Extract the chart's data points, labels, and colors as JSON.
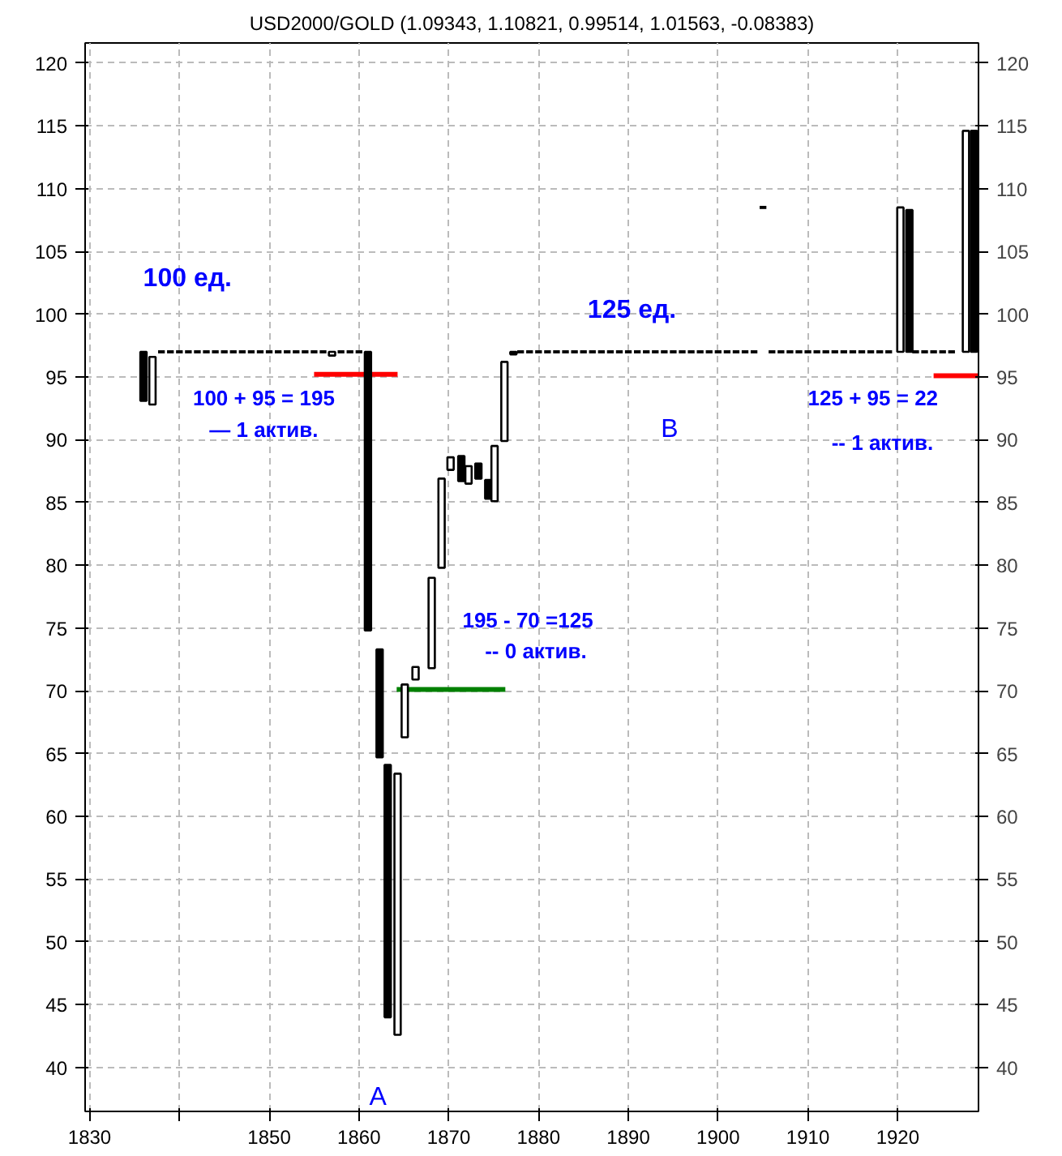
{
  "chart_data": {
    "type": "candlestick",
    "title": "USD2000/GOLD (1.09343, 1.10821, 0.99514, 1.01563, -0.08383)",
    "x": [
      1836,
      1837,
      1838,
      1839,
      1840,
      1841,
      1842,
      1843,
      1844,
      1845,
      1846,
      1847,
      1848,
      1849,
      1850,
      1851,
      1852,
      1853,
      1854,
      1855,
      1856,
      1857,
      1858,
      1859,
      1860,
      1861,
      1862.3,
      1863.2,
      1864.3,
      1865.1,
      1866.3,
      1868.1,
      1869.2,
      1870.2,
      1871.4,
      1872.2,
      1873.3,
      1874.4,
      1875.1,
      1876.2,
      1877.2,
      1878,
      1879,
      1880,
      1881,
      1882,
      1883,
      1884,
      1885,
      1886,
      1887,
      1888,
      1889,
      1890,
      1891,
      1892,
      1893,
      1894,
      1895,
      1896,
      1897,
      1898,
      1899,
      1900,
      1901,
      1902,
      1903,
      1904,
      1905,
      1906,
      1907,
      1908,
      1909,
      1910,
      1911,
      1912,
      1913,
      1914,
      1915,
      1916,
      1917,
      1918,
      1919,
      1920.3,
      1921.3,
      1922,
      1923,
      1924,
      1925,
      1926,
      1927.6,
      1928.5
    ],
    "ohlc": [
      [
        97,
        97,
        93.1,
        93.1
      ],
      [
        92.8,
        96.6,
        92.8,
        96.6
      ],
      [
        97,
        97,
        97,
        97
      ],
      [
        97,
        97,
        97,
        97
      ],
      [
        97,
        97,
        97,
        97
      ],
      [
        97,
        97,
        97,
        97
      ],
      [
        97,
        97,
        97,
        97
      ],
      [
        97,
        97,
        97,
        97
      ],
      [
        97,
        97,
        97,
        97
      ],
      [
        97,
        97,
        97,
        97
      ],
      [
        97,
        97,
        97,
        97
      ],
      [
        97,
        97,
        97,
        97
      ],
      [
        97,
        97,
        97,
        97
      ],
      [
        97,
        97,
        97,
        97
      ],
      [
        97,
        97,
        97,
        97
      ],
      [
        97,
        97,
        97,
        97
      ],
      [
        97,
        97,
        97,
        97
      ],
      [
        97,
        97,
        97,
        97
      ],
      [
        97,
        97,
        97,
        97
      ],
      [
        97,
        97,
        97,
        97
      ],
      [
        97,
        97,
        97,
        97
      ],
      [
        96.7,
        97,
        96.7,
        97
      ],
      [
        97,
        97,
        97,
        97
      ],
      [
        97,
        97,
        97,
        97
      ],
      [
        97,
        97,
        97,
        97
      ],
      [
        97,
        97,
        74.8,
        74.8
      ],
      [
        73.3,
        73.3,
        64.7,
        64.7
      ],
      [
        64.1,
        64.1,
        44,
        44
      ],
      [
        42.6,
        63.4,
        42.6,
        63.4
      ],
      [
        66.3,
        70.5,
        66.3,
        70.5
      ],
      [
        70.9,
        71.9,
        70.9,
        71.9
      ],
      [
        71.8,
        79,
        71.8,
        79
      ],
      [
        79.8,
        86.9,
        79.8,
        86.9
      ],
      [
        87.6,
        88.6,
        87.6,
        88.6
      ],
      [
        88.7,
        88.7,
        86.7,
        86.7
      ],
      [
        86.5,
        87.9,
        86.5,
        87.9
      ],
      [
        88.1,
        88.1,
        86.9,
        86.9
      ],
      [
        86.8,
        86.8,
        85.3,
        85.3
      ],
      [
        85.1,
        89.5,
        85.1,
        89.5
      ],
      [
        89.9,
        96.2,
        89.9,
        96.2
      ],
      [
        97,
        97,
        96.8,
        96.8
      ],
      [
        97,
        97,
        97,
        97
      ],
      [
        97,
        97,
        97,
        97
      ],
      [
        97,
        97,
        97,
        97
      ],
      [
        97,
        97,
        97,
        97
      ],
      [
        97,
        97,
        97,
        97
      ],
      [
        97,
        97,
        97,
        97
      ],
      [
        97,
        97,
        97,
        97
      ],
      [
        97,
        97,
        97,
        97
      ],
      [
        97,
        97,
        97,
        97
      ],
      [
        97,
        97,
        97,
        97
      ],
      [
        97,
        97,
        97,
        97
      ],
      [
        97,
        97,
        97,
        97
      ],
      [
        97,
        97,
        97,
        97
      ],
      [
        97,
        97,
        97,
        97
      ],
      [
        97,
        97,
        97,
        97
      ],
      [
        97,
        97,
        97,
        97
      ],
      [
        97,
        97,
        97,
        97
      ],
      [
        97,
        97,
        97,
        97
      ],
      [
        97,
        97,
        97,
        97
      ],
      [
        97,
        97,
        97,
        97
      ],
      [
        97,
        97,
        97,
        97
      ],
      [
        97,
        97,
        97,
        97
      ],
      [
        97,
        97,
        97,
        97
      ],
      [
        97,
        97,
        97,
        97
      ],
      [
        97,
        97,
        97,
        97
      ],
      [
        97,
        97,
        97,
        97
      ],
      [
        97,
        97,
        97,
        97
      ],
      [
        108.5,
        108.5,
        108.5,
        108.5
      ],
      [
        97,
        97,
        97,
        97
      ],
      [
        97,
        97,
        97,
        97
      ],
      [
        97,
        97,
        97,
        97
      ],
      [
        97,
        97,
        97,
        97
      ],
      [
        97,
        97,
        97,
        97
      ],
      [
        97,
        97,
        97,
        97
      ],
      [
        97,
        97,
        97,
        97
      ],
      [
        97,
        97,
        97,
        97
      ],
      [
        97,
        97,
        97,
        97
      ],
      [
        97,
        97,
        97,
        97
      ],
      [
        97,
        97,
        97,
        97
      ],
      [
        97,
        97,
        97,
        97
      ],
      [
        97,
        97,
        97,
        97
      ],
      [
        97,
        97,
        97,
        97
      ],
      [
        97,
        108.5,
        97,
        108.5
      ],
      [
        108.3,
        108.3,
        97,
        97
      ],
      [
        97,
        97,
        97,
        97
      ],
      [
        97,
        97,
        97,
        97
      ],
      [
        97,
        97,
        97,
        97
      ],
      [
        97,
        97,
        97,
        97
      ],
      [
        97,
        97,
        97,
        97
      ],
      [
        97,
        114.6,
        97,
        114.6
      ],
      [
        114.6,
        114.6,
        97,
        97
      ]
    ],
    "series": [
      {
        "type": "line",
        "color": "#ff0000",
        "x": [
          1855,
          1864.3
        ],
        "values": [
          95.2,
          95.2
        ]
      },
      {
        "type": "line",
        "color": "#008000",
        "x": [
          1864.2,
          1876.3
        ],
        "values": [
          70.1,
          70.1
        ]
      },
      {
        "type": "line",
        "color": "#ff0000",
        "x": [
          1924,
          1929
        ],
        "values": [
          95.1,
          95.1
        ]
      }
    ],
    "annotations": [
      "100 ед.",
      "100 + 95 = 195",
      "— 1 актив.",
      "195 - 70 =125",
      "-- 0 актив.",
      "125 ед.",
      "B",
      "125 + 95  =  22",
      "-- 1 актив.",
      "A"
    ],
    "xlim": [
      1829.5,
      1929
    ],
    "xticks": [
      1830,
      {
        "value": 1840,
        "label": null
      },
      1850,
      1860,
      1870,
      1880,
      1890,
      1900,
      1910,
      1920
    ],
    "ylim": [
      36.5,
      121.6
    ],
    "yticks": [
      40,
      45,
      50,
      55,
      60,
      65,
      70,
      75,
      80,
      85,
      90,
      95,
      100,
      105,
      110,
      115,
      120
    ],
    "y2lim": [
      36.5,
      121.6
    ],
    "y2ticks": [
      40,
      45,
      50,
      55,
      60,
      65,
      70,
      75,
      80,
      85,
      90,
      95,
      100,
      105,
      110,
      115,
      120
    ],
    "grid": true
  }
}
